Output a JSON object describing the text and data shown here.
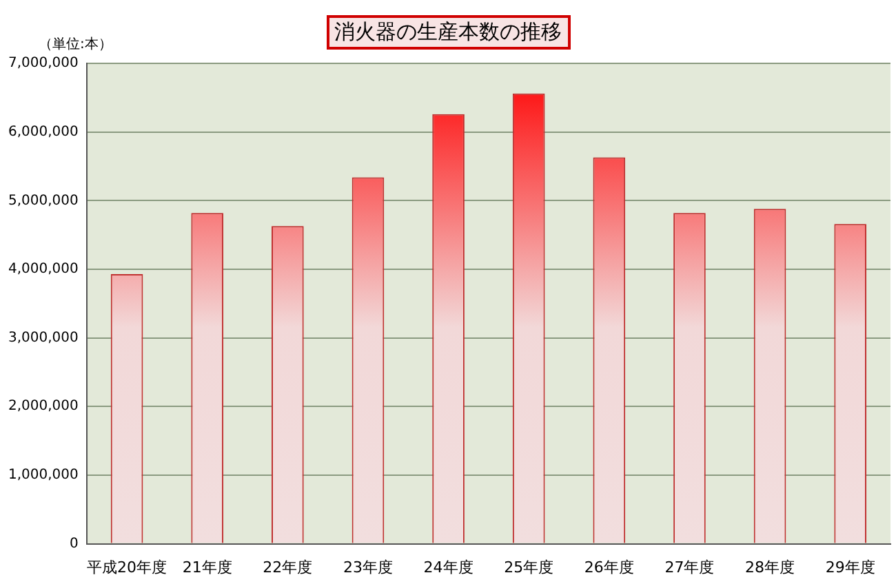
{
  "chart_data": {
    "type": "bar",
    "title": "消火器の生産本数の推移",
    "annotations": [
      "（単位:本）"
    ],
    "categories": [
      "平成20年度",
      "21年度",
      "22年度",
      "23年度",
      "24年度",
      "25年度",
      "26年度",
      "27年度",
      "28年度",
      "29年度"
    ],
    "series": [
      {
        "color": "#ff0000",
        "values": [
          3930000,
          4820000,
          4630000,
          5340000,
          6260000,
          6560000,
          5630000,
          4820000,
          4880000,
          4660000
        ]
      }
    ],
    "ylim": [
      0,
      7000000
    ],
    "yticks": [
      0,
      {
        "value": 1000000,
        "label": "1,000,000"
      },
      {
        "value": 2000000,
        "label": "2,000,000"
      },
      {
        "value": 3000000,
        "label": "3,000,000"
      },
      {
        "value": 4000000,
        "label": "4,000,000"
      },
      {
        "value": 5000000,
        "label": "5,000,000"
      },
      {
        "value": 6000000,
        "label": "6,000,000"
      },
      {
        "value": 7000000,
        "label": "7,000,000"
      }
    ],
    "grid": "y",
    "legend": false
  }
}
